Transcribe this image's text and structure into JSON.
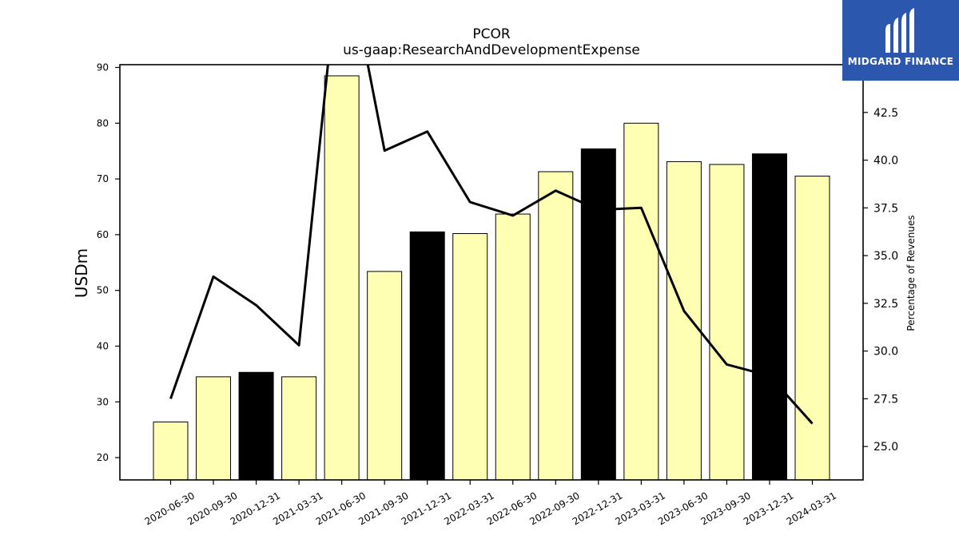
{
  "chart_data": {
    "type": "bar",
    "title": "PCOR",
    "subtitle": "us-gaap:ResearchAndDevelopmentExpense",
    "ylabel": "USDm",
    "y2label": "Percentage of Revenues",
    "categories": [
      "2020-06-30",
      "2020-09-30",
      "2020-12-31",
      "2021-03-31",
      "2021-06-30",
      "2021-09-30",
      "2021-12-31",
      "2022-03-31",
      "2022-06-30",
      "2022-09-30",
      "2022-12-31",
      "2023-03-31",
      "2023-06-30",
      "2023-09-30",
      "2023-12-31",
      "2024-03-31"
    ],
    "series": [
      {
        "type": "bar",
        "axis": "left",
        "values": [
          26.4,
          34.5,
          35.3,
          34.5,
          88.5,
          53.4,
          60.5,
          60.2,
          63.7,
          71.3,
          75.4,
          80.0,
          73.1,
          72.6,
          74.5,
          70.5
        ],
        "colors": [
          "#ffffb3",
          "#ffffb3",
          "#000000",
          "#ffffb3",
          "#ffffb3",
          "#ffffb3",
          "#000000",
          "#ffffb3",
          "#ffffb3",
          "#ffffb3",
          "#000000",
          "#ffffb3",
          "#ffffb3",
          "#ffffb3",
          "#000000",
          "#ffffb3"
        ]
      },
      {
        "type": "line",
        "axis": "right",
        "values": [
          27.5,
          33.9,
          32.4,
          30.3,
          52.0,
          40.5,
          41.5,
          37.8,
          37.1,
          38.4,
          37.4,
          37.5,
          32.1,
          29.3,
          28.7,
          26.2
        ],
        "color": "#000000"
      }
    ],
    "ylim": [
      16,
      90.5
    ],
    "y2lim": [
      23.25,
      45.0
    ],
    "yticks": [
      20,
      30,
      40,
      50,
      60,
      70,
      80,
      90
    ],
    "y2ticks": [
      "25.0",
      "27.5",
      "30.0",
      "32.5",
      "35.0",
      "37.5",
      "40.0",
      "42.5"
    ],
    "grid": false
  },
  "logo": {
    "text": "MIDGARD FINANCE",
    "color": "#2b57ae"
  }
}
